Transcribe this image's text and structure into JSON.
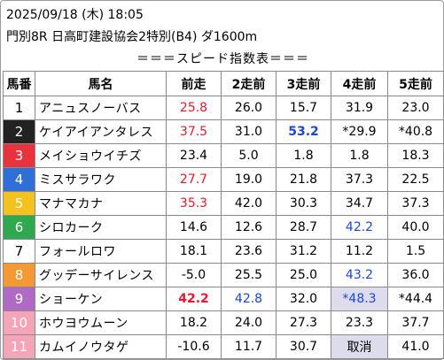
{
  "header": {
    "datetime": "2025/09/18 (木) 18:05",
    "race": "門別8R 日高町建設協会2特別(B4) ダ1600m",
    "title": "＝＝＝スピード指数表＝＝＝"
  },
  "columns": [
    "馬番",
    "馬名",
    "前走",
    "2走前",
    "3走前",
    "4走前",
    "5走前"
  ],
  "colors": {
    "post_1": "#ffffff",
    "post_2": "#222222",
    "post_3": "#e8323c",
    "post_4": "#2f6fd6",
    "post_5": "#f4c21f",
    "post_6": "#2fa84f",
    "post_7": "#ffffff",
    "post_8": "#f39a34",
    "post_9": "#b069c4",
    "post_10": "#f4a6b8",
    "post_11": "#f4a6b8",
    "red_value": "#e8192c",
    "blue_value": "#1c46d8",
    "shaded_cell": "#dcdcec"
  },
  "rows": [
    {
      "num": "1",
      "name": "アニュスノーバス",
      "v": [
        {
          "t": "25.8",
          "s": "red"
        },
        {
          "t": "26.0"
        },
        {
          "t": "15.7"
        },
        {
          "t": "31.9"
        },
        {
          "t": "23.0"
        }
      ]
    },
    {
      "num": "2",
      "name": "ケイアイアンタレス",
      "v": [
        {
          "t": "37.5",
          "s": "red"
        },
        {
          "t": "31.0"
        },
        {
          "t": "53.2",
          "s": "blue bold"
        },
        {
          "t": "*29.9"
        },
        {
          "t": "*40.8"
        }
      ]
    },
    {
      "num": "3",
      "name": "メイショウイチズ",
      "v": [
        {
          "t": "23.4"
        },
        {
          "t": "5.0"
        },
        {
          "t": "1.8"
        },
        {
          "t": "1.8"
        },
        {
          "t": "18.3"
        }
      ]
    },
    {
      "num": "4",
      "name": "ミスサラワク",
      "v": [
        {
          "t": "27.7",
          "s": "red"
        },
        {
          "t": "19.0"
        },
        {
          "t": "21.8"
        },
        {
          "t": "37.3"
        },
        {
          "t": "22.5"
        }
      ]
    },
    {
      "num": "5",
      "name": "マナマカナ",
      "v": [
        {
          "t": "35.3",
          "s": "red"
        },
        {
          "t": "42.0"
        },
        {
          "t": "30.3"
        },
        {
          "t": "34.7"
        },
        {
          "t": "37.3"
        }
      ]
    },
    {
      "num": "6",
      "name": "シロカーク",
      "v": [
        {
          "t": "14.6"
        },
        {
          "t": "12.6"
        },
        {
          "t": "28.7"
        },
        {
          "t": "42.2",
          "s": "blue"
        },
        {
          "t": "40.0"
        }
      ]
    },
    {
      "num": "7",
      "name": "フォールロワ",
      "v": [
        {
          "t": "18.1"
        },
        {
          "t": "23.6"
        },
        {
          "t": "31.2"
        },
        {
          "t": "11.2"
        },
        {
          "t": "1.5"
        }
      ]
    },
    {
      "num": "8",
      "name": "グッデーサイレンス",
      "v": [
        {
          "t": "-5.0"
        },
        {
          "t": "25.5"
        },
        {
          "t": "25.0"
        },
        {
          "t": "43.2",
          "s": "blue"
        },
        {
          "t": "36.0"
        }
      ]
    },
    {
      "num": "9",
      "name": "ショーケン",
      "v": [
        {
          "t": "42.2",
          "s": "red bold"
        },
        {
          "t": "42.8",
          "s": "blue"
        },
        {
          "t": "32.0"
        },
        {
          "t": "*48.3",
          "s": "blue shade"
        },
        {
          "t": "*44.4"
        }
      ]
    },
    {
      "num": "10",
      "name": "ホウヨウムーン",
      "v": [
        {
          "t": "18.2"
        },
        {
          "t": "24.0"
        },
        {
          "t": "27.3"
        },
        {
          "t": "23.3"
        },
        {
          "t": "37.7"
        }
      ]
    },
    {
      "num": "11",
      "name": "カムイノウタゲ",
      "v": [
        {
          "t": "-10.6"
        },
        {
          "t": "11.7"
        },
        {
          "t": "30.7"
        },
        {
          "t": "取消",
          "s": "shade"
        },
        {
          "t": "41.0"
        }
      ]
    }
  ]
}
